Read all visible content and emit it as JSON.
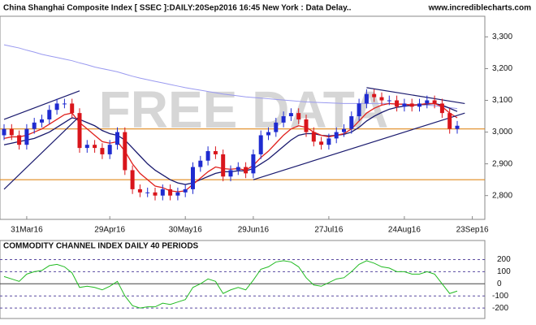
{
  "chart_data": [
    {
      "type": "candlestick",
      "title": "China Shanghai Composite Index [ SSEC ]:DAILY:20Sep2016 16:45 New York : Data Delay..",
      "source": "www.incrediblecharts.com",
      "watermark": "FREE DATA",
      "categories": [
        null,
        null,
        null,
        "31Mar16",
        null,
        null,
        null,
        null,
        null,
        null,
        null,
        null,
        null,
        null,
        "29Apr16",
        null,
        null,
        null,
        null,
        null,
        null,
        null,
        null,
        null,
        "30May16",
        null,
        null,
        null,
        null,
        null,
        null,
        null,
        null,
        "29Jun16",
        null,
        null,
        null,
        null,
        null,
        null,
        null,
        null,
        null,
        "27Jul16",
        null,
        null,
        null,
        null,
        null,
        null,
        null,
        null,
        null,
        "24Aug16",
        null,
        null,
        null,
        null,
        null,
        null,
        null,
        null,
        "23Sep16"
      ],
      "open": [
        2990,
        3010,
        2990,
        2960,
        3010,
        3030,
        3040,
        3070,
        3090,
        3090,
        3060,
        2950,
        2960,
        2950,
        2930,
        2960,
        3000,
        2880,
        2820,
        2810,
        2810,
        2800,
        2820,
        2800,
        2810,
        2820,
        2890,
        2910,
        2940,
        2930,
        2860,
        2880,
        2890,
        2870,
        2930,
        2990,
        3000,
        3030,
        3050,
        3060,
        3040,
        3000,
        2970,
        2960,
        2980,
        3000,
        3010,
        3050,
        3090,
        3120,
        3110,
        3100,
        3100,
        3080,
        3090,
        3080,
        3090,
        3100,
        3090,
        3060,
        3010,
        null,
        null
      ],
      "high": [
        3025,
        3025,
        3005,
        3025,
        3045,
        3055,
        3085,
        3105,
        3105,
        3105,
        3075,
        2975,
        2975,
        2965,
        2975,
        3015,
        3015,
        2895,
        2835,
        2825,
        2825,
        2835,
        2835,
        2825,
        2835,
        2905,
        2925,
        2955,
        2955,
        2945,
        2895,
        2905,
        2905,
        2945,
        3005,
        3015,
        3045,
        3065,
        3075,
        3075,
        3055,
        3015,
        2985,
        2995,
        3015,
        3025,
        3065,
        3105,
        3135,
        3135,
        3125,
        3115,
        3115,
        3105,
        3105,
        3105,
        3115,
        3115,
        3105,
        3075,
        3035,
        null,
        null
      ],
      "low": [
        2975,
        2975,
        2945,
        2945,
        2995,
        3015,
        3025,
        3055,
        3075,
        3045,
        2935,
        2935,
        2935,
        2915,
        2915,
        2945,
        2865,
        2805,
        2795,
        2795,
        2785,
        2785,
        2785,
        2785,
        2795,
        2805,
        2875,
        2895,
        2915,
        2845,
        2845,
        2865,
        2855,
        2855,
        2915,
        2975,
        2985,
        3015,
        3035,
        3025,
        2985,
        2955,
        2945,
        2945,
        2965,
        2985,
        2995,
        3035,
        3075,
        3095,
        3085,
        3085,
        3065,
        3065,
        3065,
        3065,
        3075,
        3075,
        3045,
        2995,
        2995,
        null,
        null
      ],
      "close": [
        3010,
        2990,
        2960,
        3010,
        3030,
        3040,
        3070,
        3090,
        3090,
        3060,
        2950,
        2960,
        2950,
        2930,
        2960,
        3000,
        2880,
        2820,
        2810,
        2810,
        2800,
        2820,
        2800,
        2810,
        2820,
        2890,
        2910,
        2940,
        2930,
        2860,
        2880,
        2890,
        2870,
        2930,
        2990,
        3000,
        3030,
        3050,
        3060,
        3040,
        3000,
        2970,
        2960,
        2980,
        3000,
        3010,
        3050,
        3090,
        3120,
        3110,
        3100,
        3100,
        3080,
        3090,
        3080,
        3090,
        3100,
        3090,
        3060,
        3010,
        3020,
        null,
        null
      ],
      "up_color": "#1f2bd0",
      "down_color": "#d9151b",
      "series": [
        {
          "color": "#9a9af0",
          "values": [
            3275,
            3270,
            3265,
            3258,
            3252,
            3245,
            3240,
            3235,
            3230,
            3225,
            3218,
            3212,
            3205,
            3200,
            3195,
            3190,
            3183,
            3176,
            3170,
            3165,
            3160,
            3155,
            3150,
            3145,
            3140,
            3136,
            3132,
            3128,
            3124,
            3120,
            3117,
            3114,
            3111,
            3109,
            3107,
            3105,
            3103,
            3101,
            3099,
            3097,
            3095,
            3094,
            3093,
            3092,
            3091,
            3090,
            3090,
            3090,
            3090,
            3090,
            3090,
            3090,
            3089,
            3088,
            3087,
            3086,
            3085,
            3083,
            3080,
            3077,
            3074,
            null,
            null
          ]
        },
        {
          "color": "#1a1a6e",
          "values": [
            2960,
            2965,
            2970,
            2975,
            2980,
            2990,
            3000,
            3015,
            3030,
            3045,
            3040,
            3030,
            3020,
            3005,
            2995,
            2990,
            2975,
            2950,
            2925,
            2900,
            2880,
            2865,
            2850,
            2840,
            2835,
            2840,
            2850,
            2860,
            2870,
            2875,
            2875,
            2878,
            2878,
            2885,
            2900,
            2915,
            2935,
            2955,
            2975,
            2990,
            2995,
            2995,
            2990,
            2988,
            2990,
            2993,
            3000,
            3015,
            3035,
            3050,
            3062,
            3072,
            3078,
            3082,
            3084,
            3086,
            3088,
            3090,
            3085,
            3075,
            3065,
            null,
            null
          ]
        },
        {
          "color": "#e0201c",
          "values": [
            2980,
            2985,
            2985,
            2990,
            3000,
            3010,
            3025,
            3040,
            3055,
            3060,
            3030,
            3010,
            2990,
            2970,
            2965,
            2970,
            2940,
            2900,
            2870,
            2850,
            2830,
            2825,
            2815,
            2812,
            2815,
            2835,
            2855,
            2875,
            2890,
            2885,
            2883,
            2885,
            2880,
            2895,
            2920,
            2940,
            2965,
            2990,
            3010,
            3020,
            3015,
            3000,
            2990,
            2985,
            2990,
            2995,
            3010,
            3035,
            3060,
            3075,
            3085,
            3090,
            3088,
            3088,
            3085,
            3087,
            3090,
            3090,
            3080,
            3060,
            3045,
            null,
            null
          ]
        }
      ],
      "reference_lines": [
        3010,
        2850
      ],
      "reference_color": "#e08a1e",
      "trend_lines": [
        {
          "x": [
            0,
            10
          ],
          "y": [
            3040,
            3130
          ]
        },
        {
          "x": [
            0,
            10
          ],
          "y": [
            2820,
            3050
          ]
        },
        {
          "x": [
            33,
            61
          ],
          "y": [
            2850,
            3060
          ]
        },
        {
          "x": [
            48,
            61
          ],
          "y": [
            3140,
            3090
          ]
        }
      ],
      "ylim": [
        2725,
        3365
      ],
      "yticks": [
        {
          "value": 2800,
          "label": "2,800"
        },
        {
          "value": 2900,
          "label": "2,900"
        },
        {
          "value": 3000,
          "label": "3,000"
        },
        {
          "value": 3100,
          "label": "3,100"
        },
        {
          "value": 3200,
          "label": "3,200"
        },
        {
          "value": 3300,
          "label": "3,300"
        }
      ]
    },
    {
      "type": "line",
      "title": "COMMODITY CHANNEL INDEX DAILY 40 PERIODS",
      "color": "#22bb22",
      "values": [
        60,
        40,
        20,
        80,
        100,
        110,
        150,
        160,
        140,
        90,
        -30,
        -20,
        -30,
        -50,
        -20,
        20,
        -100,
        -180,
        -200,
        -190,
        -190,
        -160,
        -170,
        -150,
        -130,
        -30,
        0,
        40,
        20,
        -80,
        -50,
        -30,
        -50,
        30,
        120,
        140,
        180,
        190,
        180,
        140,
        50,
        -10,
        -20,
        10,
        40,
        50,
        100,
        160,
        190,
        170,
        140,
        130,
        100,
        100,
        80,
        80,
        100,
        80,
        0,
        -80,
        -60,
        null,
        null
      ],
      "ylim": [
        -286,
        357
      ],
      "yticks": [
        -200,
        -100,
        0,
        100,
        200
      ]
    }
  ]
}
